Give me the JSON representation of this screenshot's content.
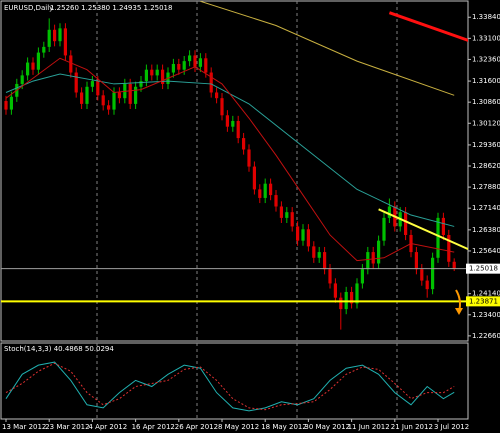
{
  "chart_data": [
    {
      "type": "candlestick",
      "title": "EURUSD,Daily",
      "subtitle": "1.25260 1.25380 1.24935 1.25018",
      "categories": [
        "13 Mar 2012",
        null,
        null,
        null,
        null,
        null,
        null,
        null,
        "23 Mar 2012",
        null,
        null,
        null,
        null,
        null,
        null,
        null,
        "4 Apr 2012",
        null,
        null,
        null,
        null,
        null,
        null,
        null,
        "16 Apr 2012",
        null,
        null,
        null,
        null,
        null,
        null,
        null,
        "26 Apr 2012",
        null,
        null,
        null,
        null,
        null,
        null,
        null,
        "8 May 2012",
        null,
        null,
        null,
        null,
        null,
        null,
        null,
        "18 May 2012",
        null,
        null,
        null,
        null,
        null,
        null,
        null,
        "30 May 2012",
        null,
        null,
        null,
        null,
        null,
        null,
        null,
        "11 Jun 2012",
        null,
        null,
        null,
        null,
        null,
        null,
        null,
        "21 Jun 2012",
        null,
        null,
        null,
        null,
        null,
        null,
        null,
        "3 Jul 2012",
        null,
        null,
        null
      ],
      "open": [
        1.309,
        1.306,
        1.3105,
        1.315,
        1.318,
        1.3225,
        1.32,
        1.326,
        1.328,
        1.334,
        1.33,
        1.3345,
        1.325,
        1.319,
        1.312,
        1.308,
        1.314,
        1.316,
        1.311,
        1.3075,
        1.306,
        1.312,
        1.31,
        1.315,
        1.308,
        1.314,
        1.316,
        1.32,
        1.318,
        1.32,
        1.315,
        1.319,
        1.322,
        1.32,
        1.323,
        1.325,
        1.321,
        1.324,
        1.319,
        1.312,
        1.31,
        1.304,
        1.3,
        1.302,
        1.296,
        1.292,
        1.286,
        1.278,
        1.275,
        1.28,
        1.276,
        1.272,
        1.268,
        1.27,
        1.265,
        1.26,
        1.264,
        1.258,
        1.254,
        1.256,
        1.25,
        1.245,
        1.24,
        1.236,
        1.242,
        1.238,
        1.245,
        1.25,
        1.256,
        1.252,
        1.26,
        1.268,
        1.272,
        1.265,
        1.27,
        1.262,
        1.256,
        1.25,
        1.246,
        1.243,
        1.254,
        1.268,
        1.262,
        1.2526
      ],
      "high": [
        1.3108,
        1.3123,
        1.3168,
        1.3198,
        1.3243,
        1.3243,
        1.3278,
        1.3298,
        1.338,
        1.3358,
        1.3363,
        1.3363,
        1.3268,
        1.3208,
        1.3138,
        1.3158,
        1.3178,
        1.3178,
        1.3128,
        1.3093,
        1.3138,
        1.3138,
        1.3168,
        1.3168,
        1.3158,
        1.3178,
        1.3218,
        1.3218,
        1.3218,
        1.3218,
        1.3208,
        1.3238,
        1.3238,
        1.3248,
        1.3268,
        1.3268,
        1.3258,
        1.3258,
        1.3208,
        1.3138,
        1.3118,
        1.3058,
        1.3038,
        1.3038,
        1.2978,
        1.2938,
        1.2878,
        1.2798,
        1.2818,
        1.2818,
        1.2778,
        1.2738,
        1.2718,
        1.2718,
        1.2668,
        1.2658,
        1.2658,
        1.2598,
        1.2578,
        1.2578,
        1.2518,
        1.2468,
        1.2418,
        1.2438,
        1.2438,
        1.2468,
        1.2518,
        1.2578,
        1.2578,
        1.2618,
        1.2698,
        1.2748,
        1.2738,
        1.2718,
        1.2718,
        1.2638,
        1.2578,
        1.2518,
        1.2478,
        1.2558,
        1.2698,
        1.2698,
        1.2638,
        1.2538
      ],
      "low": [
        1.3042,
        1.3042,
        1.3087,
        1.3132,
        1.3162,
        1.3182,
        1.3182,
        1.3242,
        1.3262,
        1.3282,
        1.3282,
        1.3232,
        1.3172,
        1.3102,
        1.3062,
        1.3062,
        1.3122,
        1.3092,
        1.3057,
        1.3042,
        1.3042,
        1.3082,
        1.3082,
        1.3062,
        1.3062,
        1.3122,
        1.3142,
        1.3162,
        1.3162,
        1.3132,
        1.3132,
        1.3172,
        1.3182,
        1.3182,
        1.3212,
        1.3192,
        1.3192,
        1.3172,
        1.3102,
        1.3082,
        1.3022,
        1.2982,
        1.2982,
        1.2942,
        1.2902,
        1.2842,
        1.2762,
        1.2732,
        1.2732,
        1.2742,
        1.2702,
        1.2662,
        1.2662,
        1.2632,
        1.2582,
        1.2582,
        1.2562,
        1.2522,
        1.2522,
        1.2482,
        1.2432,
        1.2382,
        1.2288,
        1.2342,
        1.2362,
        1.2362,
        1.2432,
        1.2482,
        1.2502,
        1.2502,
        1.2582,
        1.2662,
        1.2632,
        1.2632,
        1.2602,
        1.2542,
        1.2482,
        1.2442,
        1.24,
        1.2412,
        1.2522,
        1.2602,
        1.2508,
        1.24935
      ],
      "close": [
        1.306,
        1.3105,
        1.315,
        1.318,
        1.3225,
        1.32,
        1.326,
        1.328,
        1.334,
        1.33,
        1.3345,
        1.325,
        1.319,
        1.312,
        1.308,
        1.314,
        1.316,
        1.311,
        1.3075,
        1.306,
        1.312,
        1.31,
        1.315,
        1.308,
        1.314,
        1.316,
        1.32,
        1.318,
        1.32,
        1.315,
        1.319,
        1.322,
        1.32,
        1.323,
        1.325,
        1.321,
        1.324,
        1.319,
        1.312,
        1.31,
        1.304,
        1.3,
        1.302,
        1.296,
        1.292,
        1.286,
        1.278,
        1.275,
        1.28,
        1.276,
        1.272,
        1.268,
        1.27,
        1.265,
        1.26,
        1.264,
        1.258,
        1.254,
        1.256,
        1.25,
        1.245,
        1.24,
        1.236,
        1.242,
        1.238,
        1.245,
        1.25,
        1.256,
        1.252,
        1.26,
        1.268,
        1.272,
        1.265,
        1.27,
        1.262,
        1.256,
        1.25,
        1.246,
        1.243,
        1.254,
        1.268,
        1.262,
        1.2526,
        1.25018
      ],
      "up_color": "#00c000",
      "down_color": "#e00000",
      "ylim": [
        1.2248,
        1.3441
      ],
      "yticks": [
        {
          "value": 1.3384,
          "label": "1.33840"
        },
        {
          "value": 1.331,
          "label": "1.33100"
        },
        {
          "value": 1.3236,
          "label": "1.32360"
        },
        {
          "value": 1.316,
          "label": "1.31600"
        },
        {
          "value": 1.3086,
          "label": "1.30860"
        },
        {
          "value": 1.3012,
          "label": "1.30120"
        },
        {
          "value": 1.2936,
          "label": "1.29360"
        },
        {
          "value": 1.2862,
          "label": "1.28620"
        },
        {
          "value": 1.2788,
          "label": "1.27880"
        },
        {
          "value": 1.2714,
          "label": "1.27140"
        },
        {
          "value": 1.2638,
          "label": "1.26380"
        },
        {
          "value": 1.2564,
          "label": "1.25640"
        },
        {
          "value": 1.2414,
          "label": "1.24140"
        },
        {
          "value": 1.234,
          "label": "1.23400"
        },
        {
          "value": 1.2266,
          "label": "1.22660"
        }
      ],
      "overlays": [
        {
          "color": "#2aa198",
          "width": 1,
          "x": [
            0,
            5,
            10,
            20,
            30,
            38,
            45,
            55,
            65,
            75,
            83
          ],
          "values": [
            1.312,
            1.316,
            1.3185,
            1.315,
            1.316,
            1.315,
            1.308,
            1.293,
            1.278,
            1.269,
            1.265
          ]
        },
        {
          "color": "#c01010",
          "width": 1,
          "x": [
            0,
            5,
            10,
            15,
            20,
            25,
            30,
            35,
            40,
            45,
            50,
            55,
            60,
            65,
            70,
            75,
            83
          ],
          "values": [
            1.31,
            1.317,
            1.324,
            1.32,
            1.312,
            1.313,
            1.317,
            1.321,
            1.315,
            1.303,
            1.29,
            1.276,
            1.262,
            1.253,
            1.254,
            1.259,
            1.256
          ]
        },
        {
          "color": "#c8b040",
          "width": 1,
          "x": [
            36,
            50,
            65,
            83
          ],
          "values": [
            1.344,
            1.3355,
            1.323,
            1.311
          ]
        },
        {
          "color": "#ff1010",
          "width": 3,
          "x": [
            71,
            86
          ],
          "values": [
            1.34,
            1.33
          ]
        },
        {
          "color": "#ffff40",
          "width": 2,
          "x": [
            69,
            88
          ],
          "values": [
            1.271,
            1.255
          ]
        }
      ],
      "hlines": [
        {
          "value": 1.25018,
          "label": "1.25018",
          "color": "#a0a0a0",
          "box": "#ffffff"
        },
        {
          "value": 1.23871,
          "label": "1.23871",
          "color": "#ffff00",
          "box": "#ffff00"
        }
      ]
    },
    {
      "type": "line",
      "title": "Stoch(14,3,3) 40.4868 50.0294",
      "ylim": [
        0,
        100
      ],
      "series": [
        {
          "color": "#20b0b0",
          "style": "solid",
          "x": [
            0,
            3,
            6,
            9,
            12,
            15,
            18,
            21,
            24,
            27,
            30,
            33,
            36,
            39,
            42,
            45,
            48,
            51,
            54,
            57,
            60,
            63,
            66,
            69,
            72,
            75,
            78,
            81,
            83
          ],
          "values": [
            30,
            70,
            85,
            90,
            60,
            20,
            15,
            40,
            60,
            50,
            70,
            85,
            80,
            40,
            15,
            10,
            15,
            25,
            20,
            30,
            60,
            80,
            85,
            70,
            40,
            20,
            50,
            30,
            40.4868
          ]
        },
        {
          "color": "#e03030",
          "style": "dashed",
          "x": [
            0,
            3,
            6,
            9,
            12,
            15,
            18,
            21,
            24,
            27,
            30,
            33,
            36,
            39,
            42,
            45,
            48,
            51,
            54,
            57,
            60,
            63,
            66,
            69,
            72,
            75,
            78,
            81,
            83
          ],
          "values": [
            40,
            55,
            75,
            88,
            75,
            40,
            20,
            30,
            50,
            55,
            60,
            78,
            82,
            60,
            30,
            15,
            12,
            20,
            22,
            25,
            45,
            70,
            82,
            78,
            55,
            30,
            40,
            40,
            50.0294
          ]
        }
      ]
    }
  ]
}
